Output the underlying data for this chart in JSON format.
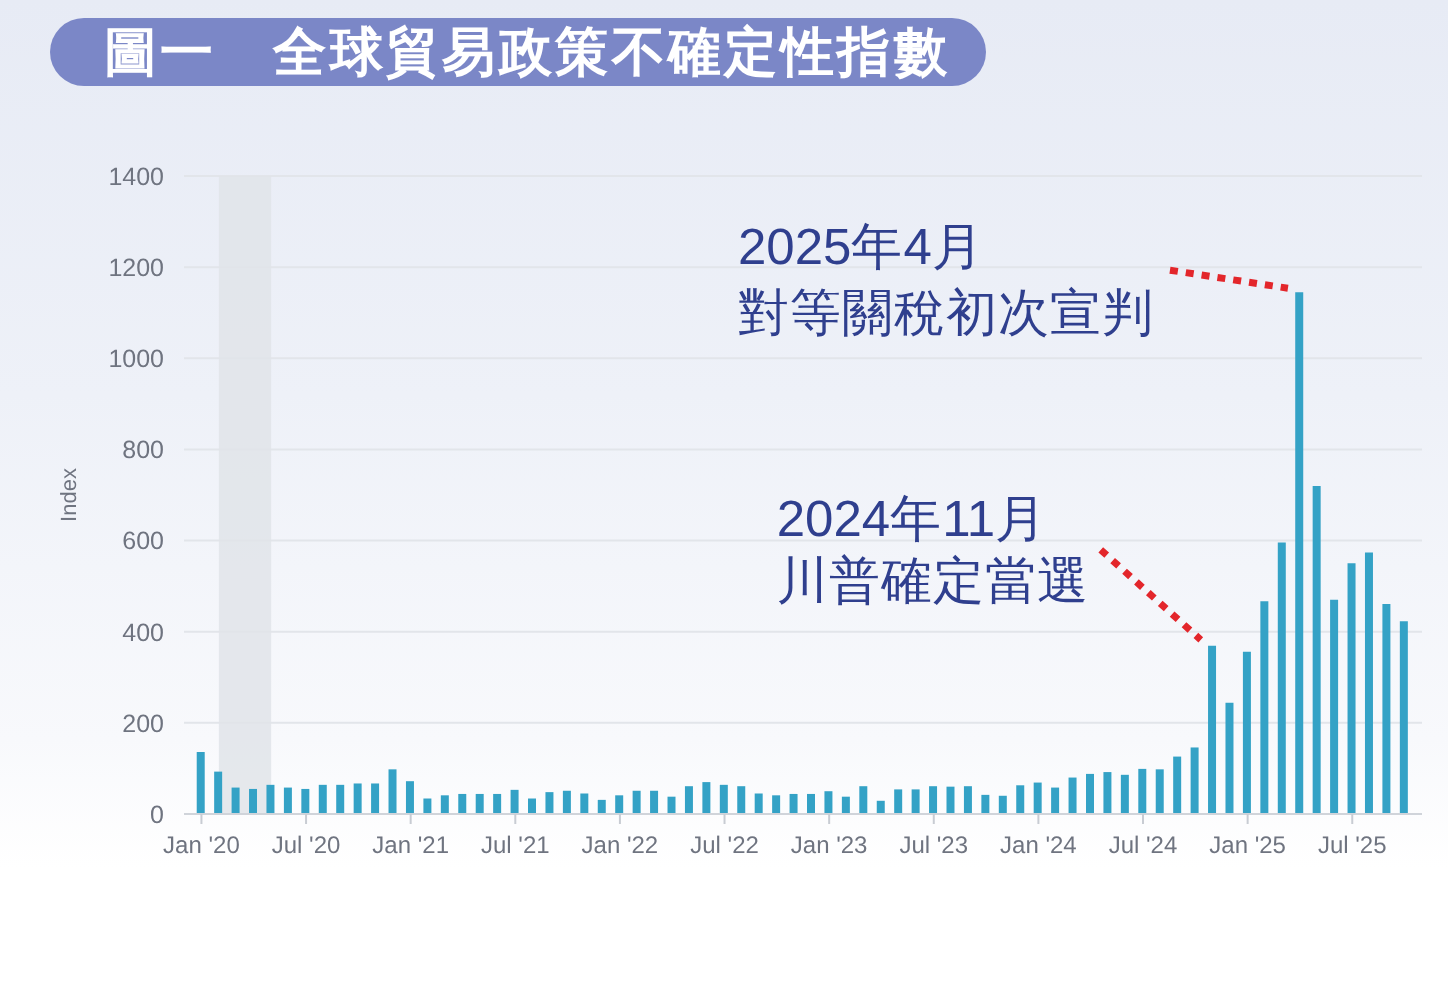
{
  "chart_data": {
    "type": "bar",
    "title": "圖一　全球貿易政策不確定性指數",
    "ylabel": "Index",
    "x": [
      "2020-01",
      "2020-02",
      "2020-03",
      "2020-04",
      "2020-05",
      "2020-06",
      "2020-07",
      "2020-08",
      "2020-09",
      "2020-10",
      "2020-11",
      "2020-12",
      "2021-01",
      "2021-02",
      "2021-03",
      "2021-04",
      "2021-05",
      "2021-06",
      "2021-07",
      "2021-08",
      "2021-09",
      "2021-10",
      "2021-11",
      "2021-12",
      "2022-01",
      "2022-02",
      "2022-03",
      "2022-04",
      "2022-05",
      "2022-06",
      "2022-07",
      "2022-08",
      "2022-09",
      "2022-10",
      "2022-11",
      "2022-12",
      "2023-01",
      "2023-02",
      "2023-03",
      "2023-04",
      "2023-05",
      "2023-06",
      "2023-07",
      "2023-08",
      "2023-09",
      "2023-10",
      "2023-11",
      "2023-12",
      "2024-01",
      "2024-02",
      "2024-03",
      "2024-04",
      "2024-05",
      "2024-06",
      "2024-07",
      "2024-08",
      "2024-09",
      "2024-10",
      "2024-11",
      "2024-12",
      "2025-01",
      "2025-02",
      "2025-03",
      "2025-04",
      "2025-05",
      "2025-06",
      "2025-07",
      "2025-08",
      "2025-09",
      "2025-10"
    ],
    "values": [
      136,
      93,
      58,
      55,
      64,
      58,
      55,
      64,
      64,
      67,
      67,
      98,
      72,
      34,
      41,
      44,
      44,
      44,
      53,
      34,
      48,
      51,
      45,
      31,
      41,
      51,
      51,
      38,
      61,
      70,
      64,
      61,
      45,
      41,
      44,
      44,
      50,
      38,
      61,
      29,
      54,
      54,
      61,
      60,
      61,
      42,
      40,
      63,
      69,
      58,
      80,
      88,
      92,
      86,
      99,
      98,
      126,
      146,
      369,
      244,
      356,
      467,
      596,
      1145,
      720,
      470,
      550,
      574,
      461,
      423
    ],
    "color": "#34a2c6",
    "xlim": [
      "2019-12",
      "2025-11"
    ],
    "xticks": [
      {
        "value": "2020-01",
        "label": "Jan '20"
      },
      {
        "value": "2020-07",
        "label": "Jul '20"
      },
      {
        "value": "2021-01",
        "label": "Jan '21"
      },
      {
        "value": "2021-07",
        "label": "Jul '21"
      },
      {
        "value": "2022-01",
        "label": "Jan '22"
      },
      {
        "value": "2022-07",
        "label": "Jul '22"
      },
      {
        "value": "2023-01",
        "label": "Jan '23"
      },
      {
        "value": "2023-07",
        "label": "Jul '23"
      },
      {
        "value": "2024-01",
        "label": "Jan '24"
      },
      {
        "value": "2024-07",
        "label": "Jul '24"
      },
      {
        "value": "2025-01",
        "label": "Jan '25"
      },
      {
        "value": "2025-07",
        "label": "Jul '25"
      }
    ],
    "ylim": [
      0,
      1400
    ],
    "yticks": [
      0,
      200,
      400,
      600,
      800,
      1000,
      1200,
      1400
    ],
    "grid": "y",
    "bands": [
      {
        "axis": "x",
        "from": "2020-02",
        "to": "2020-05",
        "color": "#e1e4e9"
      }
    ],
    "annotations": [
      {
        "text": "2025年4月對等關稅初次宣判",
        "x": "2025-04",
        "y": 1145
      },
      {
        "text": "2024年11月川普確定當選",
        "x": "2024-11",
        "y": 369
      }
    ]
  }
}
